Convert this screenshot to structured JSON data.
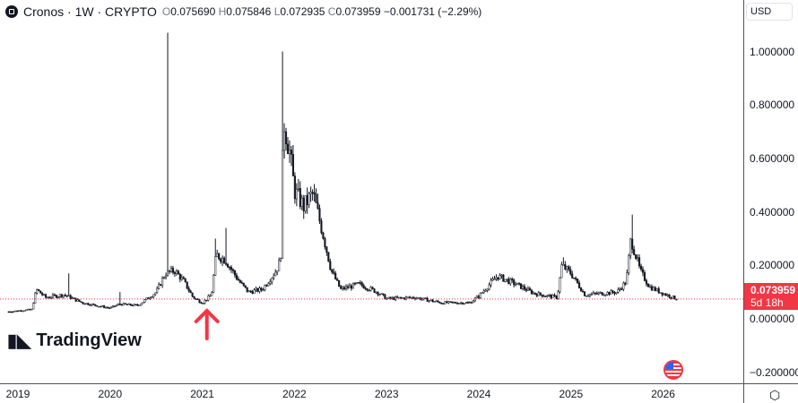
{
  "header": {
    "symbol": "Cronos · 1W · CRYPTO",
    "open": "0.075690",
    "high": "0.075846",
    "low": "0.072935",
    "close": "0.073959",
    "change": "−0.001731 (−2.29%)",
    "o_label": "O",
    "h_label": "H",
    "l_label": "L",
    "c_label": "C"
  },
  "currency": "USD",
  "last_price": {
    "value": "0.073959",
    "countdown": "5d 18h",
    "color": "#f23645"
  },
  "brand": "TradingView",
  "chart_data": {
    "type": "bar",
    "title": "Cronos · 1W · CRYPTO",
    "y_ticks": [
      "1.000000",
      "0.800000",
      "0.600000",
      "0.400000",
      "0.200000",
      "0.000000",
      "−0.200000"
    ],
    "y_tick_values": [
      1,
      0.8,
      0.6,
      0.4,
      0.2,
      0,
      -0.2
    ],
    "x_ticks": [
      "2019",
      "2020",
      "2021",
      "2022",
      "2023",
      "2024",
      "2025",
      "2026"
    ],
    "ylim": [
      -0.25,
      1.1
    ],
    "xlim": [
      2018.8,
      2026.8
    ],
    "keypoints": [
      [
        2018.9,
        0.027
      ],
      [
        2019.15,
        0.035
      ],
      [
        2019.2,
        0.11
      ],
      [
        2019.3,
        0.08
      ],
      [
        2019.5,
        0.09
      ],
      [
        2019.7,
        0.06
      ],
      [
        2020.0,
        0.04
      ],
      [
        2020.1,
        0.055
      ],
      [
        2020.3,
        0.05
      ],
      [
        2020.5,
        0.1
      ],
      [
        2020.6,
        0.17
      ],
      [
        2020.7,
        0.18
      ],
      [
        2020.8,
        0.14
      ],
      [
        2020.9,
        0.08
      ],
      [
        2021.0,
        0.06
      ],
      [
        2021.1,
        0.09
      ],
      [
        2021.15,
        0.24
      ],
      [
        2021.25,
        0.22
      ],
      [
        2021.4,
        0.14
      ],
      [
        2021.5,
        0.1
      ],
      [
        2021.65,
        0.11
      ],
      [
        2021.8,
        0.18
      ],
      [
        2021.85,
        0.22
      ],
      [
        2021.88,
        0.75
      ],
      [
        2021.95,
        0.62
      ],
      [
        2022.0,
        0.48
      ],
      [
        2022.1,
        0.42
      ],
      [
        2022.2,
        0.47
      ],
      [
        2022.3,
        0.33
      ],
      [
        2022.4,
        0.18
      ],
      [
        2022.5,
        0.11
      ],
      [
        2022.7,
        0.13
      ],
      [
        2022.9,
        0.1
      ],
      [
        2023.0,
        0.075
      ],
      [
        2023.3,
        0.08
      ],
      [
        2023.6,
        0.06
      ],
      [
        2023.9,
        0.06
      ],
      [
        2024.0,
        0.085
      ],
      [
        2024.2,
        0.16
      ],
      [
        2024.4,
        0.13
      ],
      [
        2024.6,
        0.095
      ],
      [
        2024.85,
        0.08
      ],
      [
        2024.9,
        0.2
      ],
      [
        2025.0,
        0.17
      ],
      [
        2025.15,
        0.09
      ],
      [
        2025.5,
        0.1
      ],
      [
        2025.6,
        0.14
      ],
      [
        2025.65,
        0.3
      ],
      [
        2025.75,
        0.18
      ],
      [
        2025.85,
        0.12
      ],
      [
        2026.0,
        0.095
      ],
      [
        2026.15,
        0.074
      ]
    ],
    "wicks": [
      [
        2019.55,
        0.17
      ],
      [
        2020.1,
        0.1
      ],
      [
        2020.62,
        1.07
      ],
      [
        2021.15,
        0.3
      ],
      [
        2021.25,
        0.34
      ],
      [
        2021.88,
        1.0
      ],
      [
        2024.92,
        0.23
      ],
      [
        2025.66,
        0.39
      ]
    ]
  },
  "annotation": {
    "arrow_color": "#f23645",
    "arrow_at": 2021.05
  }
}
